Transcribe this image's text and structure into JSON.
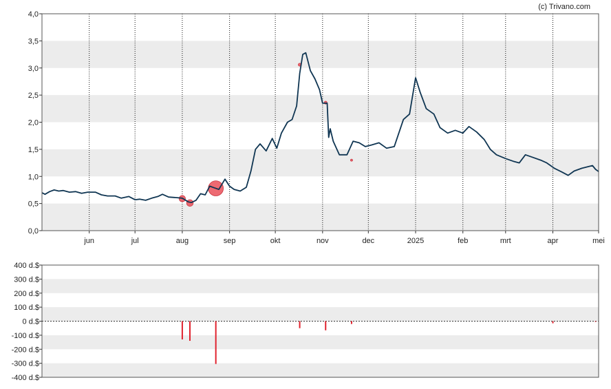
{
  "credit": "(c) Trivano.com",
  "colors": {
    "line": "#0f3552",
    "marker": "#e8454f",
    "marker_stroke": "#c93540",
    "volume_bar": "#e0222e",
    "band": "#ececec",
    "grid": "#111111",
    "frame": "#555555"
  },
  "chart_data": [
    {
      "type": "line",
      "ylim": [
        0,
        4
      ],
      "yticks": [
        "0,0",
        "0,5",
        "1,0",
        "1,5",
        "2,0",
        "2,5",
        "3,0",
        "3,5",
        "4,0"
      ],
      "xlim": [
        "2024-05-01",
        "2025-05-01"
      ],
      "xticks": [
        {
          "label": "jun",
          "date": "2024-06-01"
        },
        {
          "label": "jul",
          "date": "2024-07-01"
        },
        {
          "label": "aug",
          "date": "2024-08-01"
        },
        {
          "label": "sep",
          "date": "2024-09-01"
        },
        {
          "label": "okt",
          "date": "2024-10-01"
        },
        {
          "label": "nov",
          "date": "2024-11-01"
        },
        {
          "label": "dec",
          "date": "2024-12-01"
        },
        {
          "label": "2025",
          "date": "2025-01-01"
        },
        {
          "label": "feb",
          "date": "2025-02-01"
        },
        {
          "label": "mrt",
          "date": "2025-03-01"
        },
        {
          "label": "apr",
          "date": "2025-04-01"
        },
        {
          "label": "mei",
          "date": "2025-05-01"
        }
      ],
      "grid": "vertical dotted at month ticks, alternating horizontal bands",
      "series": [
        {
          "points": [
            [
              "2024-05-01",
              0.7
            ],
            [
              "2024-05-03",
              0.67
            ],
            [
              "2024-05-06",
              0.72
            ],
            [
              "2024-05-09",
              0.75
            ],
            [
              "2024-05-12",
              0.73
            ],
            [
              "2024-05-15",
              0.74
            ],
            [
              "2024-05-19",
              0.71
            ],
            [
              "2024-05-23",
              0.72
            ],
            [
              "2024-05-27",
              0.69
            ],
            [
              "2024-05-31",
              0.71
            ],
            [
              "2024-06-05",
              0.71
            ],
            [
              "2024-06-09",
              0.66
            ],
            [
              "2024-06-13",
              0.64
            ],
            [
              "2024-06-18",
              0.64
            ],
            [
              "2024-06-22",
              0.6
            ],
            [
              "2024-06-27",
              0.63
            ],
            [
              "2024-07-01",
              0.57
            ],
            [
              "2024-07-04",
              0.58
            ],
            [
              "2024-07-08",
              0.56
            ],
            [
              "2024-07-12",
              0.6
            ],
            [
              "2024-07-16",
              0.63
            ],
            [
              "2024-07-19",
              0.67
            ],
            [
              "2024-07-23",
              0.62
            ],
            [
              "2024-07-28",
              0.61
            ],
            [
              "2024-08-01",
              0.6
            ],
            [
              "2024-08-05",
              0.53
            ],
            [
              "2024-08-07",
              0.52
            ],
            [
              "2024-08-10",
              0.56
            ],
            [
              "2024-08-13",
              0.68
            ],
            [
              "2024-08-16",
              0.66
            ],
            [
              "2024-08-19",
              0.82
            ],
            [
              "2024-08-22",
              0.79
            ],
            [
              "2024-08-25",
              0.76
            ],
            [
              "2024-08-29",
              0.95
            ],
            [
              "2024-09-01",
              0.82
            ],
            [
              "2024-09-04",
              0.76
            ],
            [
              "2024-09-08",
              0.73
            ],
            [
              "2024-09-12",
              0.8
            ],
            [
              "2024-09-15",
              1.1
            ],
            [
              "2024-09-18",
              1.5
            ],
            [
              "2024-09-21",
              1.6
            ],
            [
              "2024-09-25",
              1.47
            ],
            [
              "2024-09-29",
              1.7
            ],
            [
              "2024-10-02",
              1.52
            ],
            [
              "2024-10-05",
              1.8
            ],
            [
              "2024-10-09",
              2.0
            ],
            [
              "2024-10-12",
              2.05
            ],
            [
              "2024-10-15",
              2.3
            ],
            [
              "2024-10-17",
              2.9
            ],
            [
              "2024-10-19",
              3.25
            ],
            [
              "2024-10-21",
              3.28
            ],
            [
              "2024-10-24",
              2.95
            ],
            [
              "2024-10-27",
              2.8
            ],
            [
              "2024-10-30",
              2.6
            ],
            [
              "2024-11-01",
              2.35
            ],
            [
              "2024-11-04",
              2.35
            ],
            [
              "2024-11-05",
              1.72
            ],
            [
              "2024-11-06",
              1.88
            ],
            [
              "2024-11-08",
              1.65
            ],
            [
              "2024-11-12",
              1.4
            ],
            [
              "2024-11-17",
              1.4
            ],
            [
              "2024-11-21",
              1.65
            ],
            [
              "2024-11-25",
              1.62
            ],
            [
              "2024-11-29",
              1.55
            ],
            [
              "2024-12-03",
              1.58
            ],
            [
              "2024-12-08",
              1.62
            ],
            [
              "2024-12-13",
              1.52
            ],
            [
              "2024-12-18",
              1.55
            ],
            [
              "2024-12-24",
              2.05
            ],
            [
              "2024-12-28",
              2.15
            ],
            [
              "2025-01-01",
              2.82
            ],
            [
              "2025-01-04",
              2.55
            ],
            [
              "2025-01-08",
              2.25
            ],
            [
              "2025-01-13",
              2.15
            ],
            [
              "2025-01-17",
              1.9
            ],
            [
              "2025-01-22",
              1.8
            ],
            [
              "2025-01-27",
              1.85
            ],
            [
              "2025-02-01",
              1.8
            ],
            [
              "2025-02-05",
              1.92
            ],
            [
              "2025-02-10",
              1.82
            ],
            [
              "2025-02-15",
              1.68
            ],
            [
              "2025-02-19",
              1.5
            ],
            [
              "2025-02-23",
              1.4
            ],
            [
              "2025-03-01",
              1.33
            ],
            [
              "2025-03-06",
              1.28
            ],
            [
              "2025-03-10",
              1.25
            ],
            [
              "2025-03-14",
              1.4
            ],
            [
              "2025-03-19",
              1.35
            ],
            [
              "2025-03-24",
              1.3
            ],
            [
              "2025-03-28",
              1.25
            ],
            [
              "2025-04-02",
              1.15
            ],
            [
              "2025-04-07",
              1.08
            ],
            [
              "2025-04-11",
              1.02
            ],
            [
              "2025-04-15",
              1.1
            ],
            [
              "2025-04-20",
              1.15
            ],
            [
              "2025-04-24",
              1.18
            ],
            [
              "2025-04-27",
              1.2
            ],
            [
              "2025-04-29",
              1.13
            ],
            [
              "2025-05-01",
              1.09
            ]
          ]
        }
      ],
      "markers": [
        {
          "date": "2024-08-01",
          "value": 0.59,
          "weight": 2.2
        },
        {
          "date": "2024-08-06",
          "value": 0.51,
          "weight": 2.3
        },
        {
          "date": "2024-08-23",
          "value": 0.78,
          "weight": 5.2
        },
        {
          "date": "2024-10-17",
          "value": 3.06,
          "weight": 1.0
        },
        {
          "date": "2024-11-03",
          "value": 2.36,
          "weight": 1.0
        },
        {
          "date": "2024-11-20",
          "value": 1.3,
          "weight": 0.5
        }
      ]
    },
    {
      "type": "bar",
      "ylim": [
        -400,
        400
      ],
      "yticks": [
        "400 d.$",
        "300 d.$",
        "200 d.$",
        "100 d.$",
        "0 d.$",
        "-100 d.$",
        "-200 d.$",
        "-300 d.$",
        "-400 d.$"
      ],
      "bars": [
        {
          "date": "2024-08-01",
          "value": -130
        },
        {
          "date": "2024-08-06",
          "value": -140
        },
        {
          "date": "2024-08-23",
          "value": -305
        },
        {
          "date": "2024-10-17",
          "value": -50
        },
        {
          "date": "2024-11-03",
          "value": -65
        },
        {
          "date": "2024-11-20",
          "value": -20
        },
        {
          "date": "2025-04-01",
          "value": -15
        },
        {
          "date": "2025-04-29",
          "value": -5
        }
      ]
    }
  ]
}
